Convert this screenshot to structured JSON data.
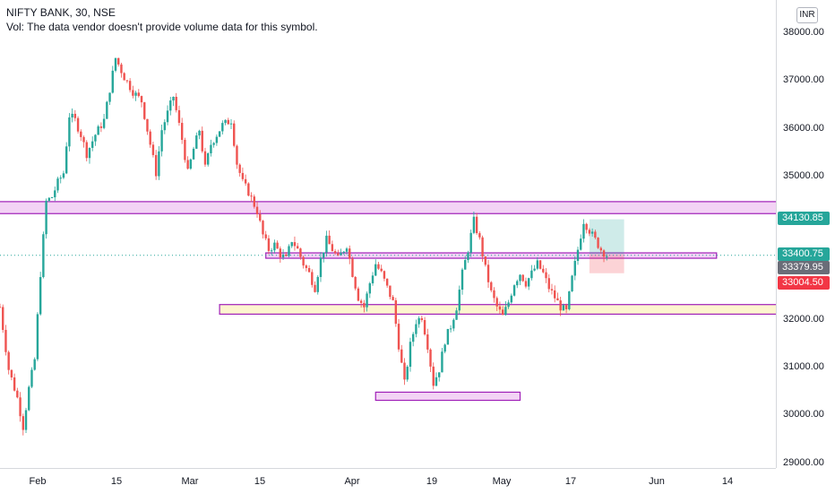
{
  "legend": {
    "symbol": "NIFTY BANK, 30, NSE",
    "volume_note": "Vol: The data vendor doesn't provide volume data for this symbol."
  },
  "currency": "INR",
  "price_axis": {
    "ticks": [
      "38000.00",
      "37000.00",
      "36000.00",
      "35000.00",
      "32000.00",
      "31000.00",
      "30000.00",
      "29000.00"
    ]
  },
  "time_axis": {
    "ticks": [
      "Feb",
      "15",
      "Mar",
      "15",
      "Apr",
      "19",
      "May",
      "17",
      "Jun",
      "14"
    ]
  },
  "price_labels": [
    {
      "text": "34130.85",
      "color": "#26a69a"
    },
    {
      "text": "33400.75",
      "color": "#26a69a"
    },
    {
      "text": "33379.95",
      "color": "#6a6d78"
    },
    {
      "text": "33004.50",
      "color": "#f23645"
    }
  ],
  "colors": {
    "up": "#26a69a",
    "down": "#ef5350",
    "zone_border": "#a020b8",
    "zone_fill_pink": "#f3d3f5",
    "zone_fill_yellow": "#fdf5cf"
  },
  "chart_data": {
    "type": "candlestick",
    "title": "NIFTY BANK, 30, NSE",
    "ylim": [
      28800,
      38200
    ],
    "x_range": [
      "Jan 25",
      "Jun 19"
    ],
    "series": [
      {
        "values": [
          [
            0.0,
            32300
          ],
          [
            1.5,
            31000
          ],
          [
            3.0,
            30400
          ],
          [
            4.0,
            29800
          ],
          [
            5.0,
            30600
          ],
          [
            6.0,
            31200
          ],
          [
            7.0,
            33000
          ],
          [
            8.0,
            34500
          ],
          [
            9.0,
            34600
          ],
          [
            10.0,
            34900
          ],
          [
            11.0,
            35100
          ],
          [
            12.0,
            36300
          ],
          [
            13.0,
            36200
          ],
          [
            14.0,
            35900
          ],
          [
            15.0,
            35500
          ],
          [
            16.5,
            35900
          ],
          [
            18.0,
            36200
          ],
          [
            20.0,
            37500
          ],
          [
            21.5,
            37100
          ],
          [
            23.0,
            36800
          ],
          [
            24.5,
            36600
          ],
          [
            26.0,
            35700
          ],
          [
            27.0,
            35100
          ],
          [
            28.0,
            36000
          ],
          [
            30.0,
            36700
          ],
          [
            31.5,
            35800
          ],
          [
            32.5,
            35100
          ],
          [
            33.5,
            35600
          ],
          [
            34.5,
            36000
          ],
          [
            35.5,
            35200
          ],
          [
            36.5,
            35700
          ],
          [
            37.5,
            35900
          ],
          [
            38.5,
            36100
          ],
          [
            40.0,
            36200
          ],
          [
            41.0,
            35300
          ],
          [
            42.0,
            34900
          ],
          [
            43.0,
            34700
          ],
          [
            44.5,
            34300
          ],
          [
            45.5,
            33800
          ],
          [
            46.5,
            33500
          ],
          [
            47.5,
            33600
          ],
          [
            48.5,
            33400
          ],
          [
            49.5,
            33300
          ],
          [
            50.5,
            33700
          ],
          [
            51.5,
            33500
          ],
          [
            52.5,
            33200
          ],
          [
            53.5,
            33000
          ],
          [
            54.5,
            32700
          ],
          [
            55.5,
            33300
          ],
          [
            56.5,
            33700
          ],
          [
            57.5,
            33500
          ],
          [
            58.5,
            33300
          ],
          [
            60.0,
            33600
          ],
          [
            61.0,
            33000
          ],
          [
            62.0,
            32500
          ],
          [
            63.0,
            32300
          ],
          [
            64.0,
            32800
          ],
          [
            65.0,
            33200
          ],
          [
            66.0,
            33000
          ],
          [
            67.0,
            32700
          ],
          [
            68.0,
            32400
          ],
          [
            69.0,
            31500
          ],
          [
            70.0,
            30700
          ],
          [
            71.0,
            31500
          ],
          [
            72.0,
            32000
          ],
          [
            73.0,
            32100
          ],
          [
            74.0,
            31500
          ],
          [
            75.0,
            30700
          ],
          [
            76.0,
            31000
          ],
          [
            77.0,
            31600
          ],
          [
            78.0,
            31900
          ],
          [
            79.0,
            32300
          ],
          [
            80.0,
            33000
          ],
          [
            81.0,
            33500
          ],
          [
            82.0,
            34100
          ],
          [
            83.0,
            33700
          ],
          [
            84.0,
            33100
          ],
          [
            85.0,
            32600
          ],
          [
            86.0,
            32300
          ],
          [
            87.0,
            32100
          ],
          [
            88.0,
            32400
          ],
          [
            89.0,
            32800
          ],
          [
            90.0,
            33000
          ],
          [
            91.0,
            32800
          ],
          [
            92.0,
            33000
          ],
          [
            93.0,
            33200
          ],
          [
            94.0,
            33000
          ],
          [
            95.0,
            32700
          ],
          [
            96.0,
            32500
          ],
          [
            97.0,
            32300
          ],
          [
            98.0,
            32200
          ],
          [
            99.0,
            32900
          ],
          [
            100.0,
            33500
          ],
          [
            101.0,
            34100
          ],
          [
            102.0,
            33900
          ],
          [
            103.0,
            33700
          ],
          [
            104.0,
            33500
          ],
          [
            105.0,
            33380
          ]
        ]
      }
    ],
    "zones": [
      {
        "label": "resistance-zone",
        "y": [
          34250,
          34500
        ],
        "x": [
          -8,
          180
        ],
        "fill": "pink"
      },
      {
        "label": "mid-zone",
        "y": [
          33330,
          33430
        ],
        "x": [
          46,
          124
        ],
        "fill": "pink"
      },
      {
        "label": "support-zone",
        "y": [
          32150,
          32350
        ],
        "x": [
          38,
          180
        ],
        "fill": "yellow"
      },
      {
        "label": "low-zone",
        "y": [
          30350,
          30520
        ],
        "x": [
          65,
          90
        ],
        "fill": "pink"
      }
    ],
    "position": {
      "entry": 33400.75,
      "target": 34130.85,
      "stop": 33004.5,
      "x": [
        102,
        108
      ]
    },
    "last_price": 33379.95
  }
}
